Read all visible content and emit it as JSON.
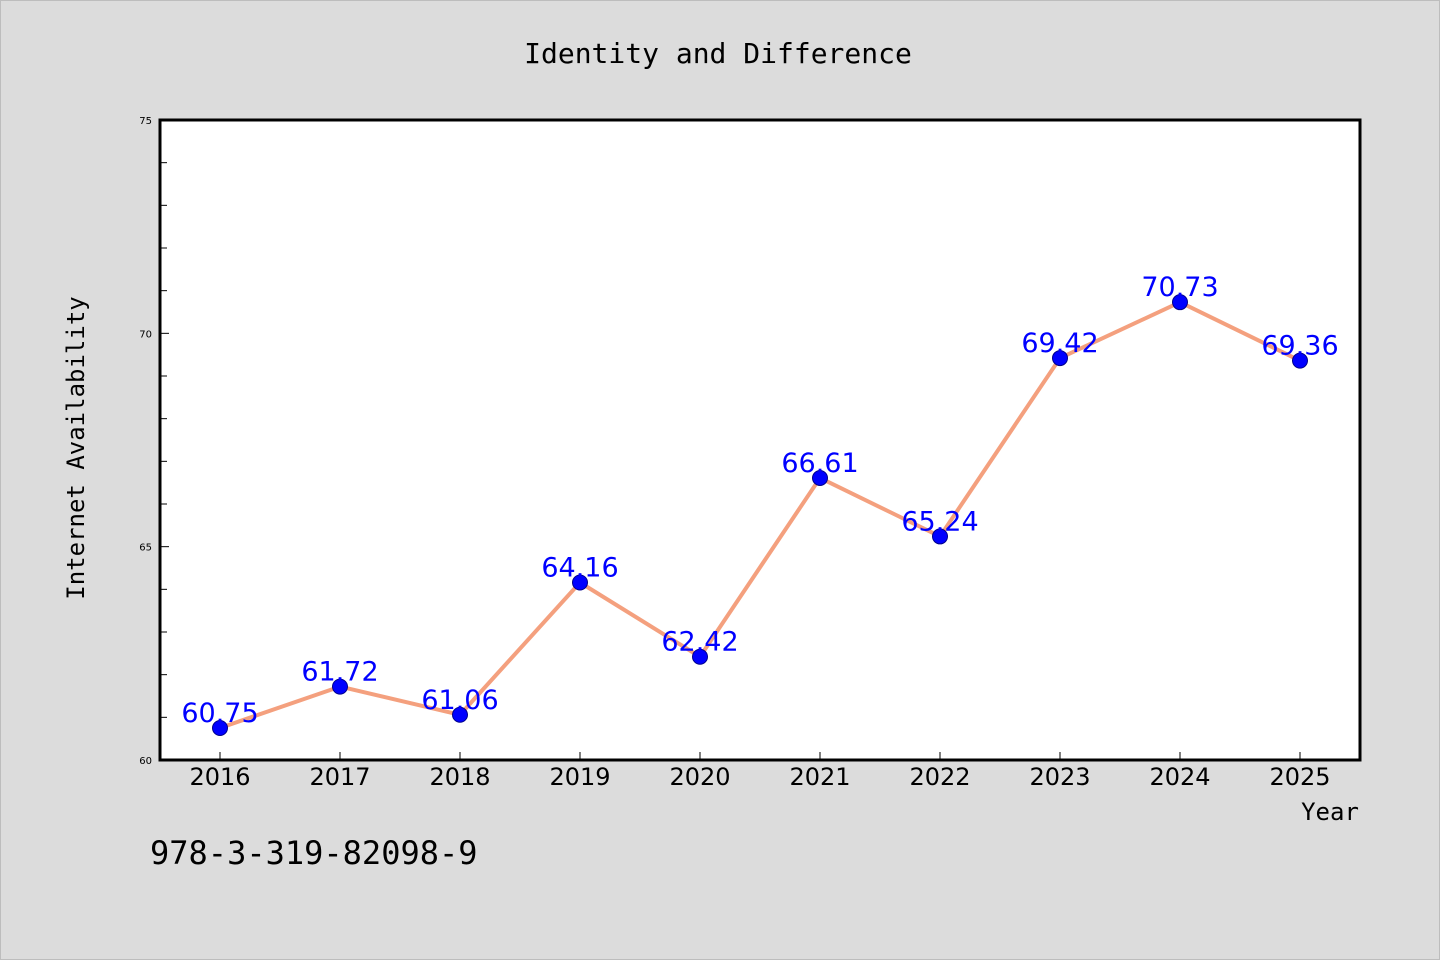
{
  "chart_data": {
    "type": "line",
    "title": "Identity and Difference",
    "xlabel": "Year",
    "ylabel": "Internet Availability",
    "categories": [
      "2016",
      "2017",
      "2018",
      "2019",
      "2020",
      "2021",
      "2022",
      "2023",
      "2024",
      "2025"
    ],
    "series": [
      {
        "values": [
          60.75,
          61.72,
          61.06,
          64.16,
          62.42,
          66.61,
          65.24,
          69.42,
          70.73,
          69.36
        ],
        "line_color": "#f4a07e",
        "marker_color": "#0000ff"
      }
    ],
    "data_labels": [
      "60.75",
      "61.72",
      "61.06",
      "64.16",
      "62.42",
      "66.61",
      "65.24",
      "69.42",
      "70.73",
      "69.36"
    ],
    "ylim": [
      60,
      75
    ],
    "y_ticks": [
      "60",
      "65",
      "70",
      "75"
    ],
    "y_minor_step": 1,
    "grid": false,
    "legend": "none"
  },
  "annotation": {
    "isbn": "978-3-319-82098-9"
  },
  "colors": {
    "background": "#dcdcdc",
    "plot_background": "#ffffff",
    "axis": "#000000"
  }
}
